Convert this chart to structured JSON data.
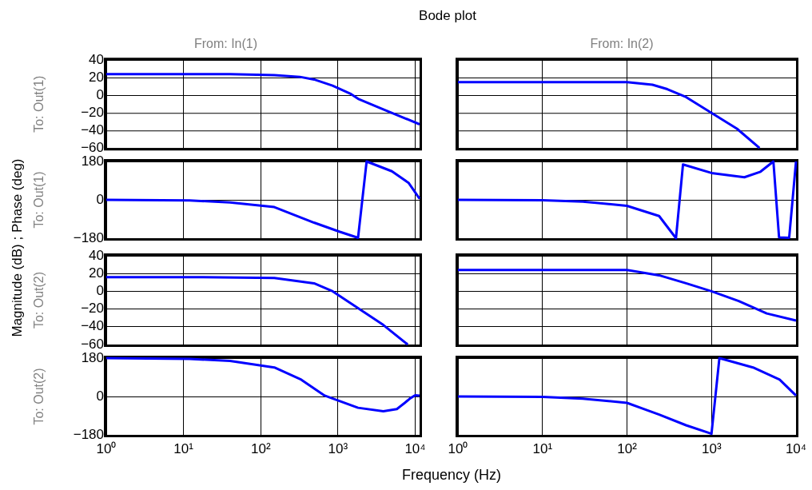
{
  "chart_data": [
    {
      "type": "line",
      "title": "From: In(1)",
      "ylabel": "To: Out(1)",
      "annotations": [
        "Bode plot",
        "Magnitude (dB) ; Phase (deg)",
        "Frequency  (Hz)"
      ],
      "x": [
        1,
        12,
        40,
        150,
        320,
        490,
        850,
        1440,
        1820,
        3870,
        11400
      ],
      "series": [
        {
          "color": "#0000ff",
          "values": [
            24,
            24,
            24,
            23,
            21,
            18,
            11,
            2,
            -4,
            -16,
            -33
          ]
        }
      ],
      "xlim": [
        1,
        11400
      ],
      "xticks": [
        {
          "value": 1,
          "label": null
        },
        {
          "value": 10,
          "label": null
        },
        {
          "value": 100,
          "label": null
        },
        {
          "value": 1000,
          "label": null
        },
        {
          "value": 10000,
          "label": null
        }
      ],
      "ylim": [
        -60,
        40
      ],
      "yticks": [
        -60,
        -40,
        -20,
        0,
        20,
        40
      ],
      "log": "x",
      "grid": true,
      "tick_labels": "y"
    },
    {
      "type": "line",
      "title": "From: In(2)",
      "x": [
        1,
        10,
        100,
        200,
        300,
        500,
        1000,
        2000,
        3700
      ],
      "series": [
        {
          "color": "#0000ff",
          "values": [
            15,
            15,
            15,
            12,
            7,
            -2,
            -20,
            -38,
            -60
          ]
        }
      ],
      "xlim": [
        1,
        10000
      ],
      "xticks": [
        {
          "value": 1,
          "label": null
        },
        {
          "value": 10,
          "label": null
        },
        {
          "value": 100,
          "label": null
        },
        {
          "value": 1000,
          "label": null
        },
        {
          "value": 10000,
          "label": null
        }
      ],
      "ylim": [
        -60,
        40
      ],
      "yticks": [
        -60,
        -40,
        -20,
        0,
        20,
        40
      ],
      "log": "x",
      "grid": true,
      "tick_labels": false
    },
    {
      "type": "line",
      "ylabel": "To: Out(1)",
      "x": [
        1,
        12,
        40,
        150,
        490,
        1040,
        1820,
        2350,
        4990,
        8200,
        11400
      ],
      "series": [
        {
          "color": "#0000ff",
          "values": [
            0,
            -3,
            -12,
            -34,
            -107,
            -149,
            -178,
            180,
            134,
            80,
            5
          ]
        }
      ],
      "xlim": [
        1,
        11400
      ],
      "xticks": [
        {
          "value": 1,
          "label": null
        },
        {
          "value": 10,
          "label": null
        },
        {
          "value": 100,
          "label": null
        },
        {
          "value": 1000,
          "label": null
        },
        {
          "value": 10000,
          "label": null
        }
      ],
      "ylim": [
        -180,
        180
      ],
      "yticks": [
        -180,
        0,
        180
      ],
      "log": "x",
      "grid": true,
      "tick_labels": "y"
    },
    {
      "type": "line",
      "x": [
        1,
        10,
        30,
        100,
        240,
        380,
        460,
        1000,
        2450,
        3800,
        5400,
        6300,
        8300,
        10000
      ],
      "series": [
        {
          "color": "#0000ff",
          "values": [
            0,
            -2,
            -8,
            -28,
            -76,
            -180,
            166,
            126,
            106,
            132,
            180,
            -176,
            -178,
            180
          ]
        }
      ],
      "xlim": [
        1,
        10000
      ],
      "xticks": [
        {
          "value": 1,
          "label": null
        },
        {
          "value": 10,
          "label": null
        },
        {
          "value": 100,
          "label": null
        },
        {
          "value": 1000,
          "label": null
        },
        {
          "value": 10000,
          "label": null
        }
      ],
      "ylim": [
        -180,
        180
      ],
      "yticks": [
        -180,
        0,
        180
      ],
      "log": "x",
      "grid": true,
      "tick_labels": false
    },
    {
      "type": "line",
      "ylabel": "To: Out(2)",
      "x": [
        1,
        12,
        150,
        490,
        855,
        1820,
        3870,
        8000
      ],
      "series": [
        {
          "color": "#0000ff",
          "values": [
            16,
            16,
            15,
            9,
            0,
            -19,
            -38,
            -60
          ]
        }
      ],
      "xlim": [
        1,
        11400
      ],
      "xticks": [
        {
          "value": 1,
          "label": null
        },
        {
          "value": 10,
          "label": null
        },
        {
          "value": 100,
          "label": null
        },
        {
          "value": 1000,
          "label": null
        },
        {
          "value": 10000,
          "label": null
        }
      ],
      "ylim": [
        -60,
        40
      ],
      "yticks": [
        -60,
        -40,
        -20,
        0,
        20,
        40
      ],
      "log": "x",
      "grid": true,
      "tick_labels": "y"
    },
    {
      "type": "line",
      "x": [
        1,
        10,
        100,
        240,
        500,
        1000,
        2100,
        4500,
        10000
      ],
      "series": [
        {
          "color": "#0000ff",
          "values": [
            24,
            24,
            24,
            18,
            9,
            0,
            -11,
            -25,
            -33
          ]
        }
      ],
      "xlim": [
        1,
        10000
      ],
      "xticks": [
        {
          "value": 1,
          "label": null
        },
        {
          "value": 10,
          "label": null
        },
        {
          "value": 100,
          "label": null
        },
        {
          "value": 1000,
          "label": null
        },
        {
          "value": 10000,
          "label": null
        }
      ],
      "ylim": [
        -60,
        40
      ],
      "yticks": [
        -60,
        -40,
        -20,
        0,
        20,
        40
      ],
      "log": "x",
      "grid": true,
      "tick_labels": false
    },
    {
      "type": "line",
      "ylabel": "To: Out(2)",
      "x": [
        1,
        12,
        40,
        150,
        334,
        673,
        1820,
        3870,
        5790,
        7330,
        8670,
        10000,
        11400
      ],
      "series": [
        {
          "color": "#0000ff",
          "values": [
            180,
            176,
            167,
            136,
            79,
            4,
            -53,
            -69,
            -59,
            -30,
            -8,
            6,
            4
          ]
        }
      ],
      "xlim": [
        1,
        11400
      ],
      "xticks": [
        {
          "value": 1,
          "label": "10⁰"
        },
        {
          "value": 10,
          "label": "10¹"
        },
        {
          "value": 100,
          "label": "10²"
        },
        {
          "value": 1000,
          "label": "10³"
        },
        {
          "value": 10000,
          "label": "10⁴"
        }
      ],
      "ylim": [
        -180,
        180
      ],
      "yticks": [
        -180,
        0,
        180
      ],
      "log": "x",
      "grid": true
    },
    {
      "type": "line",
      "x": [
        1,
        10,
        30,
        100,
        240,
        500,
        1000,
        1240,
        3100,
        6400,
        10000
      ],
      "series": [
        {
          "color": "#0000ff",
          "values": [
            0,
            -2,
            -10,
            -30,
            -85,
            -135,
            -175,
            180,
            136,
            79,
            4
          ]
        }
      ],
      "xlim": [
        1,
        10000
      ],
      "xticks": [
        {
          "value": 1,
          "label": "10⁰"
        },
        {
          "value": 10,
          "label": "10¹"
        },
        {
          "value": 100,
          "label": "10²"
        },
        {
          "value": 1000,
          "label": "10³"
        },
        {
          "value": 10000,
          "label": "10⁴"
        }
      ],
      "ylim": [
        -180,
        180
      ],
      "yticks": [
        -180,
        0,
        180
      ],
      "log": "x",
      "grid": true,
      "tick_labels": "x"
    }
  ]
}
